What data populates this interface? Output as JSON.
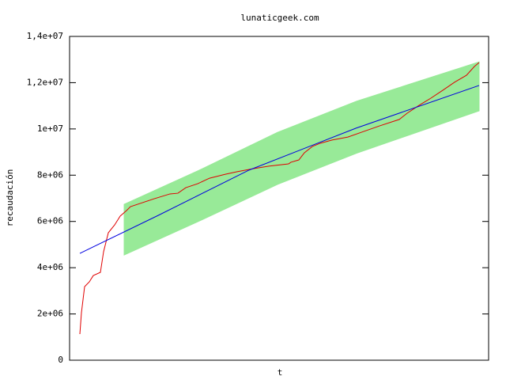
{
  "chart_data": {
    "type": "line",
    "title": "lunaticgeek.com",
    "x_label": "t",
    "y_label": "recaudación",
    "xlim": [
      -13,
      517
    ],
    "ylim": [
      0,
      14000000
    ],
    "yticks": [
      0,
      {
        "value": 2000000,
        "label": "2e+06"
      },
      {
        "value": 4000000,
        "label": "4e+06"
      },
      {
        "value": 6000000,
        "label": "6e+06"
      },
      {
        "value": 8000000,
        "label": "8e+06"
      },
      {
        "value": 10000000,
        "label": "1e+07"
      },
      {
        "value": 12000000,
        "label": "1,2e+07"
      },
      {
        "value": 14000000,
        "label": "1,4e+07"
      }
    ],
    "band": {
      "color": "#98ea98",
      "x": [
        56,
        150,
        250,
        350,
        505
      ],
      "lower": [
        4550000,
        6000000,
        7600000,
        8950000,
        10780000
      ],
      "upper": [
        6740000,
        8200000,
        9850000,
        11200000,
        12900000
      ]
    },
    "series": [
      {
        "color": "#e00000",
        "x": [
          0,
          2,
          6,
          12,
          17,
          26,
          30,
          36,
          44,
          51,
          59,
          64,
          79,
          94,
          114,
          124,
          134,
          149,
          164,
          184,
          199,
          219,
          239,
          264,
          267,
          277,
          284,
          294,
          304,
          319,
          339,
          359,
          379,
          404,
          414,
          429,
          444,
          459,
          474,
          489,
          499,
          505
        ],
        "values": [
          1130000,
          2050000,
          3180000,
          3390000,
          3660000,
          3800000,
          4690000,
          5510000,
          5850000,
          6230000,
          6470000,
          6640000,
          6810000,
          6980000,
          7190000,
          7220000,
          7460000,
          7630000,
          7870000,
          8040000,
          8150000,
          8280000,
          8390000,
          8490000,
          8560000,
          8660000,
          8970000,
          9240000,
          9380000,
          9520000,
          9650000,
          9890000,
          10130000,
          10410000,
          10680000,
          11020000,
          11330000,
          11670000,
          12020000,
          12320000,
          12700000,
          12870000
        ]
      },
      {
        "color": "#0000e0",
        "x": [
          0,
          99,
          214,
          349,
          505
        ],
        "values": [
          4620000,
          6260000,
          8220000,
          10030000,
          11880000
        ]
      }
    ]
  }
}
